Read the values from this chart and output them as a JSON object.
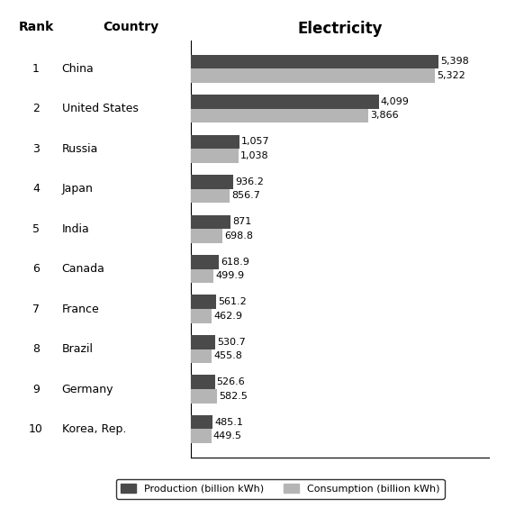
{
  "countries": [
    "China",
    "United States",
    "Russia",
    "Japan",
    "India",
    "Canada",
    "France",
    "Brazil",
    "Germany",
    "Korea, Rep."
  ],
  "ranks": [
    "1",
    "2",
    "3",
    "4",
    "5",
    "6",
    "7",
    "8",
    "9",
    "10"
  ],
  "production": [
    5398,
    4099,
    1057,
    936.2,
    871,
    618.9,
    561.2,
    530.7,
    526.6,
    485.1
  ],
  "consumption": [
    5322,
    3866,
    1038,
    856.7,
    698.8,
    499.9,
    462.9,
    455.8,
    582.5,
    449.5
  ],
  "production_color": "#4a4a4a",
  "consumption_color": "#b5b5b5",
  "title": "Electricity",
  "legend_prod": "Production (billion kWh)",
  "legend_cons": "Consumption (billion kWh)",
  "background_color": "#ffffff",
  "bar_height": 0.35,
  "xlim": [
    0,
    6500
  ],
  "title_fontsize": 12,
  "tick_fontsize": 9,
  "value_fontsize": 8,
  "header_fontsize": 10
}
